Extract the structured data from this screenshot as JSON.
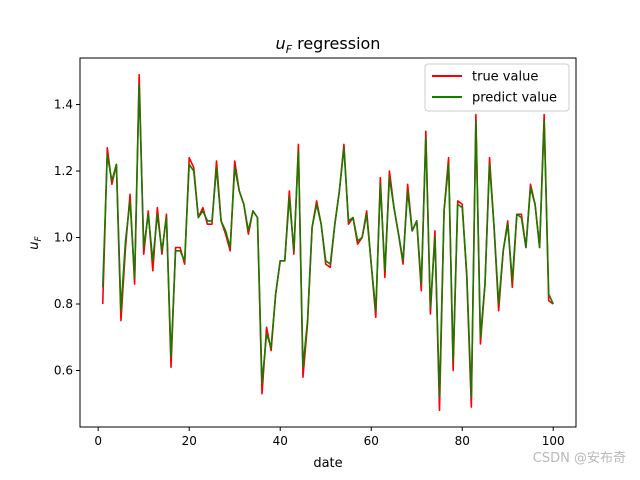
{
  "chart_data": {
    "type": "line",
    "title_main": "u",
    "title_sub": "F",
    "title_rest": " regression",
    "xlabel": "date",
    "ylabel_main": "u",
    "ylabel_sub": "F",
    "xlim": [
      -4,
      105
    ],
    "ylim": [
      0.43,
      1.54
    ],
    "xticks": [
      0,
      20,
      40,
      60,
      80,
      100
    ],
    "yticks": [
      0.6,
      0.8,
      1.0,
      1.2,
      1.4
    ],
    "ytick_labels": [
      "0.6",
      "0.8",
      "1.0",
      "1.2",
      "1.4"
    ],
    "legend_position": "upper right",
    "x": [
      1,
      2,
      3,
      4,
      5,
      6,
      7,
      8,
      9,
      10,
      11,
      12,
      13,
      14,
      15,
      16,
      17,
      18,
      19,
      20,
      21,
      22,
      23,
      24,
      25,
      26,
      27,
      28,
      29,
      30,
      31,
      32,
      33,
      34,
      35,
      36,
      37,
      38,
      39,
      40,
      41,
      42,
      43,
      44,
      45,
      46,
      47,
      48,
      49,
      50,
      51,
      52,
      53,
      54,
      55,
      56,
      57,
      58,
      59,
      60,
      61,
      62,
      63,
      64,
      65,
      66,
      67,
      68,
      69,
      70,
      71,
      72,
      73,
      74,
      75,
      76,
      77,
      78,
      79,
      80,
      81,
      82,
      83,
      84,
      85,
      86,
      87,
      88,
      89,
      90,
      91,
      92,
      93,
      94,
      95,
      96,
      97,
      98,
      99,
      100
    ],
    "series": [
      {
        "name": "true value",
        "color": "#ff0000",
        "values": [
          0.8,
          1.27,
          1.16,
          1.22,
          0.75,
          0.97,
          1.13,
          0.86,
          1.49,
          0.95,
          1.08,
          0.9,
          1.09,
          0.95,
          1.07,
          0.61,
          0.97,
          0.97,
          0.92,
          1.24,
          1.21,
          1.06,
          1.09,
          1.04,
          1.04,
          1.23,
          1.05,
          1.01,
          0.96,
          1.23,
          1.14,
          1.1,
          1.01,
          1.08,
          1.06,
          0.53,
          0.73,
          0.66,
          0.83,
          0.93,
          0.93,
          1.14,
          0.95,
          1.28,
          0.58,
          0.74,
          1.03,
          1.11,
          1.04,
          0.92,
          0.91,
          1.04,
          1.14,
          1.28,
          1.04,
          1.06,
          0.98,
          1.0,
          1.08,
          0.92,
          0.76,
          1.18,
          0.88,
          1.2,
          1.09,
          1.01,
          0.92,
          1.16,
          1.02,
          1.05,
          0.84,
          1.32,
          0.77,
          1.02,
          0.48,
          1.08,
          1.24,
          0.6,
          1.11,
          1.1,
          0.88,
          0.49,
          1.37,
          0.68,
          0.86,
          1.24,
          1.03,
          0.78,
          0.96,
          1.05,
          0.85,
          1.07,
          1.07,
          0.97,
          1.16,
          1.1,
          0.97,
          1.37,
          0.81,
          0.8
        ]
      },
      {
        "name": "predict value",
        "color": "#1a7a00",
        "values": [
          0.85,
          1.25,
          1.17,
          1.22,
          0.78,
          0.99,
          1.11,
          0.88,
          1.46,
          0.97,
          1.07,
          0.93,
          1.07,
          0.96,
          1.06,
          0.64,
          0.96,
          0.96,
          0.93,
          1.22,
          1.2,
          1.06,
          1.08,
          1.05,
          1.05,
          1.21,
          1.05,
          1.02,
          0.97,
          1.21,
          1.14,
          1.1,
          1.02,
          1.08,
          1.06,
          0.56,
          0.71,
          0.67,
          0.83,
          0.93,
          0.93,
          1.12,
          0.96,
          1.26,
          0.61,
          0.75,
          1.03,
          1.1,
          1.04,
          0.93,
          0.92,
          1.04,
          1.14,
          1.27,
          1.05,
          1.06,
          0.99,
          1.0,
          1.07,
          0.92,
          0.78,
          1.16,
          0.9,
          1.18,
          1.09,
          1.01,
          0.93,
          1.14,
          1.02,
          1.05,
          0.86,
          1.3,
          0.79,
          1.0,
          0.52,
          1.08,
          1.22,
          0.63,
          1.1,
          1.09,
          0.89,
          0.52,
          1.35,
          0.7,
          0.86,
          1.22,
          1.03,
          0.8,
          0.96,
          1.04,
          0.87,
          1.07,
          1.06,
          0.97,
          1.15,
          1.1,
          0.97,
          1.35,
          0.83,
          0.8
        ]
      }
    ]
  },
  "watermark": "CSDN @安布奇"
}
